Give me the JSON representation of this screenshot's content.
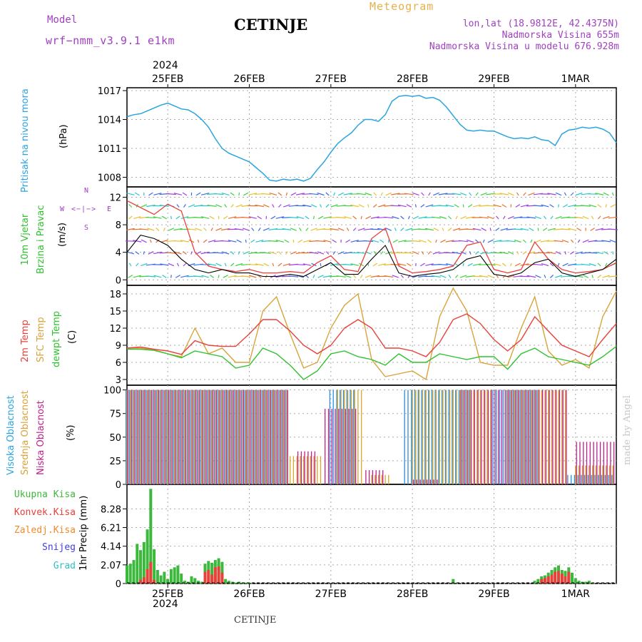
{
  "header": {
    "model_label": "Model",
    "model_name": "wrf−nmm_v3.9.1  e1km",
    "city": "CETINJE",
    "meteogram": "Meteogram",
    "lonlat": "lon,lat (18.9812E, 42.4375N)",
    "elevation": "Nadmorska Visina 655m",
    "model_elevation": "Nadmorska Visina u modelu 676.928m",
    "footer_city": "CETINJE",
    "watermark": "made by Angel"
  },
  "colors": {
    "pressure": "#2aa5e0",
    "temp2m": "#e8403a",
    "sfc_temp": "#d9a33a",
    "dewpt": "#2ec22e",
    "cloud_high": "#2a8fe0",
    "cloud_mid": "#d9a52a",
    "cloud_low": "#c0208a",
    "precip_total": "#3cb83c",
    "precip_conv": "#e8403a",
    "precip_frozen": "#f08a2a",
    "snow": "#4040e0",
    "hail": "#30c0c0",
    "wind_speed": "#e8403a",
    "wind_gust": "#000000",
    "axis": "#000000",
    "grid": "#aaaaaa"
  },
  "time_axis": {
    "top_year": "2024",
    "bottom_year": "2024",
    "day_labels": [
      "25FEB",
      "26FEB",
      "27FEB",
      "28FEB",
      "29FEB",
      "1MAR"
    ],
    "start_offset_hours": -12,
    "end_hours": 132
  },
  "chart_data": [
    {
      "type": "line",
      "id": "pressure",
      "ylabel_left": "Pritisak na nivou mora",
      "ylabel_unit": "(hPa)",
      "ylim": [
        1007,
        1017.3
      ],
      "yticks": [
        "1008",
        "1011",
        "1014",
        "1017"
      ],
      "grid": true,
      "series": [
        {
          "hours": [
            -12,
            -10,
            -8,
            -6,
            -4,
            -2,
            0,
            2,
            4,
            6,
            8,
            10,
            12,
            14,
            16,
            18,
            20,
            22,
            24,
            26,
            28,
            30,
            32,
            34,
            36,
            38,
            40,
            42,
            44,
            46,
            48,
            50,
            52,
            54,
            56,
            58,
            60,
            62,
            64,
            66,
            68,
            70,
            72,
            74,
            76,
            78,
            80,
            82,
            84,
            86,
            88,
            90,
            92,
            94,
            96,
            98,
            100,
            102,
            104,
            106,
            108,
            110,
            112,
            114,
            116,
            118,
            120,
            122,
            124,
            126,
            128,
            130,
            132
          ],
          "values": [
            1014.3,
            1014.5,
            1014.6,
            1014.9,
            1015.2,
            1015.5,
            1015.7,
            1015.4,
            1015.1,
            1015.0,
            1014.6,
            1014.0,
            1013.2,
            1012.0,
            1011.0,
            1010.5,
            1010.2,
            1009.9,
            1009.6,
            1009.0,
            1008.4,
            1007.7,
            1007.6,
            1007.8,
            1007.7,
            1007.8,
            1007.6,
            1007.9,
            1008.8,
            1009.6,
            1010.6,
            1011.5,
            1012.1,
            1012.6,
            1013.4,
            1014.0,
            1014.0,
            1013.8,
            1014.5,
            1015.9,
            1016.4,
            1016.5,
            1016.4,
            1016.5,
            1016.2,
            1016.3,
            1016.0,
            1015.3,
            1014.4,
            1013.5,
            1012.9,
            1012.8,
            1012.9,
            1012.8,
            1012.8,
            1012.5,
            1012.2,
            1012.0,
            1012.1,
            1012.0,
            1012.2,
            1011.9,
            1011.8,
            1011.3,
            1012.5,
            1012.9,
            1013.0,
            1013.2,
            1013.1,
            1013.2,
            1013.0,
            1012.6,
            1011.6
          ]
        }
      ]
    },
    {
      "type": "line",
      "id": "wind",
      "ylabel_left": "10m Vjetar",
      "ylabel_left2": "Brzina i Pravac",
      "ylabel_unit": "(m/s)",
      "compass": [
        "N",
        "W",
        "E",
        "S"
      ],
      "ylim": [
        -0.8,
        13.5
      ],
      "yticks": [
        "0",
        "4",
        "8",
        "12"
      ],
      "grid": true,
      "series": [
        {
          "name": "speed",
          "hours": [
            -12,
            -8,
            -4,
            0,
            4,
            8,
            12,
            16,
            20,
            24,
            28,
            32,
            36,
            40,
            44,
            48,
            52,
            56,
            60,
            64,
            68,
            72,
            76,
            80,
            84,
            88,
            92,
            96,
            100,
            104,
            108,
            112,
            116,
            120,
            124,
            128,
            132
          ],
          "values": [
            11.5,
            10.5,
            9.5,
            11,
            10,
            4,
            2,
            1.5,
            1.2,
            1.5,
            1.0,
            1.0,
            1.2,
            1.0,
            2.5,
            3.5,
            1.5,
            1.2,
            6,
            7.5,
            2,
            1.0,
            1.2,
            1.5,
            2,
            5,
            5.5,
            1.5,
            1.0,
            1.5,
            5.5,
            3,
            1.5,
            1.0,
            1.2,
            1.5,
            2.5
          ]
        },
        {
          "name": "gust",
          "hours": [
            -12,
            -8,
            -4,
            0,
            4,
            8,
            12,
            16,
            20,
            24,
            28,
            32,
            36,
            40,
            44,
            48,
            52,
            56,
            60,
            64,
            68,
            72,
            76,
            80,
            84,
            88,
            92,
            96,
            100,
            104,
            108,
            112,
            116,
            120,
            124,
            128,
            132
          ],
          "values": [
            4,
            6.5,
            6,
            5,
            3,
            1.5,
            1.0,
            1.5,
            1.0,
            1.0,
            0.5,
            0.5,
            0.8,
            0.5,
            1.5,
            2.5,
            0.8,
            0.8,
            3,
            5,
            1.0,
            0.5,
            0.8,
            1.0,
            1.5,
            3,
            3.5,
            0.8,
            0.5,
            1.0,
            2.5,
            3,
            1.0,
            0.5,
            1.0,
            1.5,
            3
          ]
        }
      ]
    },
    {
      "type": "line",
      "id": "temperature",
      "ylabel_left": "2m Temp",
      "ylabel_left2": "SFC Temp",
      "ylabel_left3": "dewpt Temp",
      "ylabel_unit": "(C)",
      "ylim": [
        2,
        19.5
      ],
      "yticks": [
        "3",
        "6",
        "9",
        "12",
        "15",
        "18"
      ],
      "grid": true,
      "series": [
        {
          "name": "2m",
          "hours": [
            -12,
            -8,
            -4,
            0,
            4,
            8,
            12,
            16,
            20,
            24,
            28,
            32,
            36,
            40,
            44,
            48,
            52,
            56,
            60,
            64,
            68,
            72,
            76,
            80,
            84,
            88,
            92,
            96,
            100,
            104,
            108,
            112,
            116,
            120,
            124,
            128,
            132
          ],
          "values": [
            8.5,
            8.7,
            8.3,
            8.0,
            7.4,
            9.8,
            9.0,
            8.8,
            8.8,
            11,
            13.5,
            13.5,
            11.5,
            9,
            7.5,
            9,
            12,
            13.5,
            12,
            8.5,
            8.5,
            8,
            7,
            9.5,
            13.5,
            14.5,
            12.8,
            10,
            8.0,
            10,
            14.0,
            11.5,
            9,
            8,
            7,
            10,
            12.8
          ]
        },
        {
          "name": "SFC",
          "hours": [
            -12,
            -8,
            -4,
            0,
            4,
            8,
            12,
            16,
            20,
            24,
            28,
            32,
            36,
            40,
            44,
            48,
            52,
            56,
            60,
            64,
            68,
            72,
            76,
            80,
            84,
            88,
            92,
            96,
            100,
            104,
            108,
            112,
            116,
            120,
            124,
            128,
            132
          ],
          "values": [
            8.5,
            8.5,
            8.2,
            7.5,
            7.0,
            12,
            7.5,
            8.5,
            6,
            6,
            15,
            17.5,
            11,
            5,
            6,
            12,
            16,
            18,
            6.5,
            3.5,
            4,
            4.5,
            3,
            14,
            19,
            15,
            6,
            5.5,
            5.5,
            12,
            17.5,
            8,
            5.5,
            6.5,
            5,
            14,
            18.5
          ]
        },
        {
          "name": "dewpt",
          "hours": [
            -12,
            -8,
            -4,
            0,
            4,
            8,
            12,
            16,
            20,
            24,
            28,
            32,
            36,
            40,
            44,
            48,
            52,
            56,
            60,
            64,
            68,
            72,
            76,
            80,
            84,
            88,
            92,
            96,
            100,
            104,
            108,
            112,
            116,
            120,
            124,
            128,
            132
          ],
          "values": [
            8.3,
            8.3,
            8.1,
            7.5,
            6.8,
            8,
            7.5,
            7.0,
            5.0,
            5.5,
            8.5,
            7.5,
            5.5,
            3,
            4.5,
            7.5,
            8,
            7,
            6.5,
            5.5,
            7.5,
            6,
            6,
            7.5,
            7.0,
            6.5,
            7,
            7,
            4.8,
            7.5,
            8.5,
            7,
            6.5,
            6,
            5.5,
            7,
            8.8
          ]
        }
      ]
    },
    {
      "type": "bar",
      "id": "clouds",
      "ylabel_left": "Visoka Oblacnost",
      "ylabel_left2": "Srednja Oblacnost",
      "ylabel_left3": "Niska Oblacnost",
      "ylabel_unit": "(%)",
      "ylim": [
        0,
        105
      ],
      "yticks": [
        "0",
        "25",
        "50",
        "75",
        "100"
      ],
      "grid": true,
      "series": [
        {
          "name": "high",
          "segments": [
            [
              -12,
              36,
              100
            ],
            [
              48,
              56,
              100
            ],
            [
              70,
              90,
              100
            ],
            [
              96,
              110,
              100
            ],
            [
              118,
              132,
              10
            ]
          ]
        },
        {
          "name": "mid",
          "segments": [
            [
              -12,
              36,
              100
            ],
            [
              36,
              46,
              30
            ],
            [
              50,
              58,
              100
            ],
            [
              60,
              66,
              10
            ],
            [
              72,
              96,
              100
            ],
            [
              100,
              118,
              100
            ],
            [
              120,
              132,
              20
            ]
          ]
        },
        {
          "name": "low",
          "segments": [
            [
              -12,
              36,
              100
            ],
            [
              38,
              44,
              35
            ],
            [
              46,
              56,
              80
            ],
            [
              58,
              64,
              15
            ],
            [
              72,
              80,
              5
            ],
            [
              86,
              118,
              100
            ],
            [
              120,
              132,
              45
            ]
          ]
        }
      ]
    },
    {
      "type": "bar",
      "id": "precip",
      "legend": [
        "Ukupna  Kisa",
        "Konvek.Kisa",
        "Zaledj.Kisa",
        "Snijeg",
        "Grad"
      ],
      "ylabel_unit": "1hr Precip (mm)",
      "ylim": [
        0,
        11
      ],
      "yticks": [
        "0",
        "2.07",
        "4.14",
        "6.21",
        "8.28"
      ],
      "grid": true,
      "series": [
        {
          "name": "total",
          "hours": [
            -12,
            -11,
            -10,
            -9,
            -8,
            -7,
            -6,
            -5,
            -4,
            -3,
            -2,
            -1,
            0,
            1,
            2,
            3,
            4,
            5,
            6,
            7,
            8,
            9,
            10,
            11,
            12,
            13,
            14,
            15,
            16,
            17,
            18,
            19,
            20,
            21,
            22,
            23,
            24,
            84,
            108,
            109,
            110,
            111,
            112,
            113,
            114,
            115,
            116,
            117,
            118,
            119,
            120,
            121,
            122,
            123,
            124,
            125
          ],
          "values": [
            2.0,
            2.2,
            2.6,
            4.4,
            3.7,
            4.6,
            6.0,
            10.5,
            3.8,
            1.5,
            0.9,
            1.3,
            0.5,
            1.6,
            1.8,
            2.0,
            1.1,
            0.3,
            0.2,
            0.8,
            0.6,
            0.3,
            0.2,
            2.2,
            2.5,
            2.3,
            2.6,
            2.8,
            2.4,
            0.5,
            0.3,
            0.2,
            0.1,
            0.2,
            0.1,
            0.1,
            0.1,
            0.5,
            0.3,
            0.5,
            0.8,
            0.9,
            1.2,
            1.5,
            1.8,
            2.0,
            1.5,
            1.4,
            1.8,
            1.2,
            0.6,
            0.3,
            0.2,
            0.2,
            0.3,
            0.1
          ]
        },
        {
          "name": "convective",
          "hours": [
            -8,
            -7,
            -6,
            -5,
            -4,
            11,
            12,
            13,
            14,
            15,
            16,
            110,
            111,
            112,
            113,
            114,
            115,
            116,
            117,
            118
          ],
          "values": [
            0.4,
            0.7,
            1.6,
            2.4,
            0.4,
            1.3,
            1.5,
            1.0,
            1.8,
            1.9,
            1.2,
            0.5,
            0.6,
            0.8,
            1.0,
            1.3,
            1.4,
            1.1,
            0.8,
            1.3
          ]
        }
      ]
    }
  ]
}
